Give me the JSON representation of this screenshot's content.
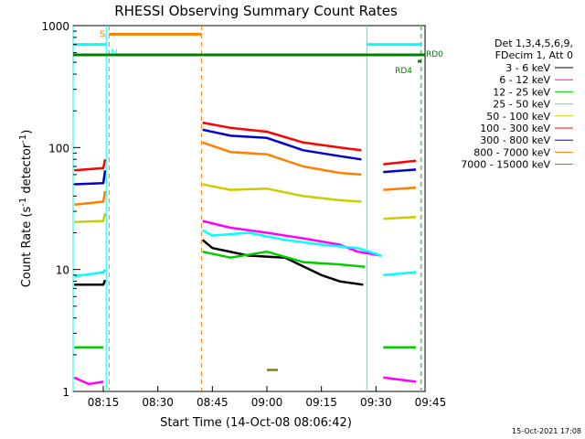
{
  "chart_data": {
    "type": "line",
    "title": "RHESSI Observing Summary Count Rates",
    "xlabel": "Start Time (14-Oct-08 08:06:42)",
    "ylabel_parts": [
      "Count Rate (s",
      "-1",
      " detector",
      "-1",
      ")"
    ],
    "y_scale": "log",
    "ylim": [
      1,
      1000
    ],
    "xlim": [
      6.7,
      103.5
    ],
    "x_units": "minutes after 08:00",
    "x_ticks": [
      {
        "v": 15,
        "label": "08:15"
      },
      {
        "v": 30,
        "label": "08:30"
      },
      {
        "v": 45,
        "label": "08:45"
      },
      {
        "v": 60,
        "label": "09:00"
      },
      {
        "v": 75,
        "label": "09:15"
      },
      {
        "v": 90,
        "label": "09:30"
      },
      {
        "v": 105,
        "label": "09:45"
      }
    ],
    "y_ticks": [
      {
        "v": 1,
        "label": "1"
      },
      {
        "v": 10,
        "label": "10"
      },
      {
        "v": 100,
        "label": "100"
      },
      {
        "v": 1000,
        "label": "1000"
      }
    ],
    "legend_header": [
      "Det 1,3,4,5,6,9,",
      "FDecim 1, Att 0"
    ],
    "timestamp": "15-Oct-2021 17:08",
    "series": [
      {
        "name": "3 - 6 keV",
        "color": "#000000",
        "segments": [
          [
            [
              7,
              7.5
            ],
            [
              15,
              7.5
            ],
            [
              15.5,
              8.2
            ]
          ],
          [
            [
              42.3,
              17.5
            ],
            [
              45,
              15
            ],
            [
              55,
              13
            ],
            [
              65,
              12.5
            ],
            [
              75,
              9
            ],
            [
              80,
              8
            ],
            [
              86.5,
              7.5
            ]
          ]
        ]
      },
      {
        "name": "6 - 12 keV",
        "color": "#ff00ff",
        "segments": [
          [
            [
              7,
              1.3
            ],
            [
              11,
              1.15
            ],
            [
              15,
              1.2
            ]
          ],
          [
            [
              42.3,
              25
            ],
            [
              50,
              22
            ],
            [
              60,
              20
            ],
            [
              70,
              18
            ],
            [
              80,
              16
            ],
            [
              85,
              14
            ],
            [
              91.5,
              13
            ]
          ],
          [
            [
              92,
              1.3
            ],
            [
              101,
              1.2
            ]
          ]
        ]
      },
      {
        "name": "12 - 25 keV",
        "color": "#00cc00",
        "segments": [
          [
            [
              7,
              2.3
            ],
            [
              15,
              2.3
            ]
          ],
          [
            [
              42.3,
              14
            ],
            [
              50,
              12.5
            ],
            [
              60,
              14
            ],
            [
              70,
              11.5
            ],
            [
              80,
              11
            ],
            [
              87,
              10.5
            ]
          ],
          [
            [
              92,
              2.3
            ],
            [
              101,
              2.3
            ]
          ]
        ]
      },
      {
        "name": "25 - 50 keV",
        "color": "#00ffff",
        "segments": [
          [
            [
              7,
              8.8
            ],
            [
              15,
              9.5
            ],
            [
              15.5,
              10
            ]
          ],
          [
            [
              42.3,
              21
            ],
            [
              45,
              19
            ],
            [
              55,
              20
            ],
            [
              65,
              17.5
            ],
            [
              75,
              16
            ],
            [
              85,
              15
            ],
            [
              91.5,
              13
            ]
          ],
          [
            [
              92,
              9
            ],
            [
              101,
              9.5
            ]
          ]
        ]
      },
      {
        "name": "50 - 100 keV",
        "color": "#cccc00",
        "segments": [
          [
            [
              7,
              24.5
            ],
            [
              15,
              25
            ],
            [
              15.5,
              29
            ]
          ],
          [
            [
              42.3,
              50
            ],
            [
              50,
              45
            ],
            [
              60,
              46
            ],
            [
              70,
              40
            ],
            [
              80,
              37
            ],
            [
              86,
              36
            ]
          ],
          [
            [
              92,
              26
            ],
            [
              101,
              27
            ]
          ]
        ]
      },
      {
        "name": "100 - 300 keV",
        "color": "#ff0000",
        "segments": [
          [
            [
              7,
              65
            ],
            [
              15,
              68
            ],
            [
              15.5,
              80
            ]
          ],
          [
            [
              42.3,
              160
            ],
            [
              50,
              145
            ],
            [
              60,
              135
            ],
            [
              70,
              110
            ],
            [
              80,
              100
            ],
            [
              86,
              95
            ]
          ],
          [
            [
              92,
              73
            ],
            [
              101,
              78
            ]
          ]
        ]
      },
      {
        "name": "300 - 800 keV",
        "color": "#0000cc",
        "segments": [
          [
            [
              7,
              50
            ],
            [
              15,
              51
            ],
            [
              15.5,
              65
            ]
          ],
          [
            [
              42.3,
              140
            ],
            [
              50,
              125
            ],
            [
              60,
              120
            ],
            [
              70,
              95
            ],
            [
              80,
              85
            ],
            [
              86,
              80
            ]
          ],
          [
            [
              92,
              63
            ],
            [
              101,
              66
            ]
          ]
        ]
      },
      {
        "name": "800 - 7000 keV",
        "color": "#ff8000",
        "segments": [
          [
            [
              7,
              34
            ],
            [
              15,
              36
            ],
            [
              15.5,
              44
            ]
          ],
          [
            [
              42.3,
              110
            ],
            [
              50,
              92
            ],
            [
              60,
              88
            ],
            [
              70,
              70
            ],
            [
              80,
              62
            ],
            [
              86,
              60
            ]
          ],
          [
            [
              92,
              45
            ],
            [
              101,
              47
            ]
          ]
        ]
      },
      {
        "name": "7000 - 15000 keV",
        "color": "#808000",
        "segments": [
          [
            [
              60,
              1.5
            ],
            [
              63,
              1.5
            ]
          ]
        ]
      }
    ],
    "state_bars": [
      {
        "label": "S",
        "color": "#ff8000",
        "y": 850,
        "x": [
          [
            16.6,
            42
          ]
        ]
      },
      {
        "label": "N",
        "color": "#00ffff",
        "y": 700,
        "x": [
          [
            6.7,
            15.8
          ],
          [
            87.5,
            102.5
          ]
        ]
      },
      {
        "label": "RD0",
        "color": "#008000",
        "y": 575,
        "x": [
          [
            6.7,
            103.5
          ]
        ]
      },
      {
        "label": "RD4",
        "color": "#008000",
        "y": 510,
        "x": [
          [
            101.5,
            102.5
          ]
        ]
      }
    ],
    "vlines": [
      {
        "x": 6.7,
        "color": "#00ffff",
        "style": "solid"
      },
      {
        "x": 15.8,
        "color": "#00ffff",
        "style": "solid"
      },
      {
        "x": 16.6,
        "color": "#ff8000",
        "style": "dash"
      },
      {
        "x": 42,
        "color": "#ff8000",
        "style": "dash"
      },
      {
        "x": 87.5,
        "color": "#00ffff",
        "style": "solid"
      },
      {
        "x": 102.3,
        "color": "#00ffff",
        "style": "dash"
      },
      {
        "x": 102.5,
        "color": "#ff8000",
        "style": "dash"
      }
    ]
  }
}
